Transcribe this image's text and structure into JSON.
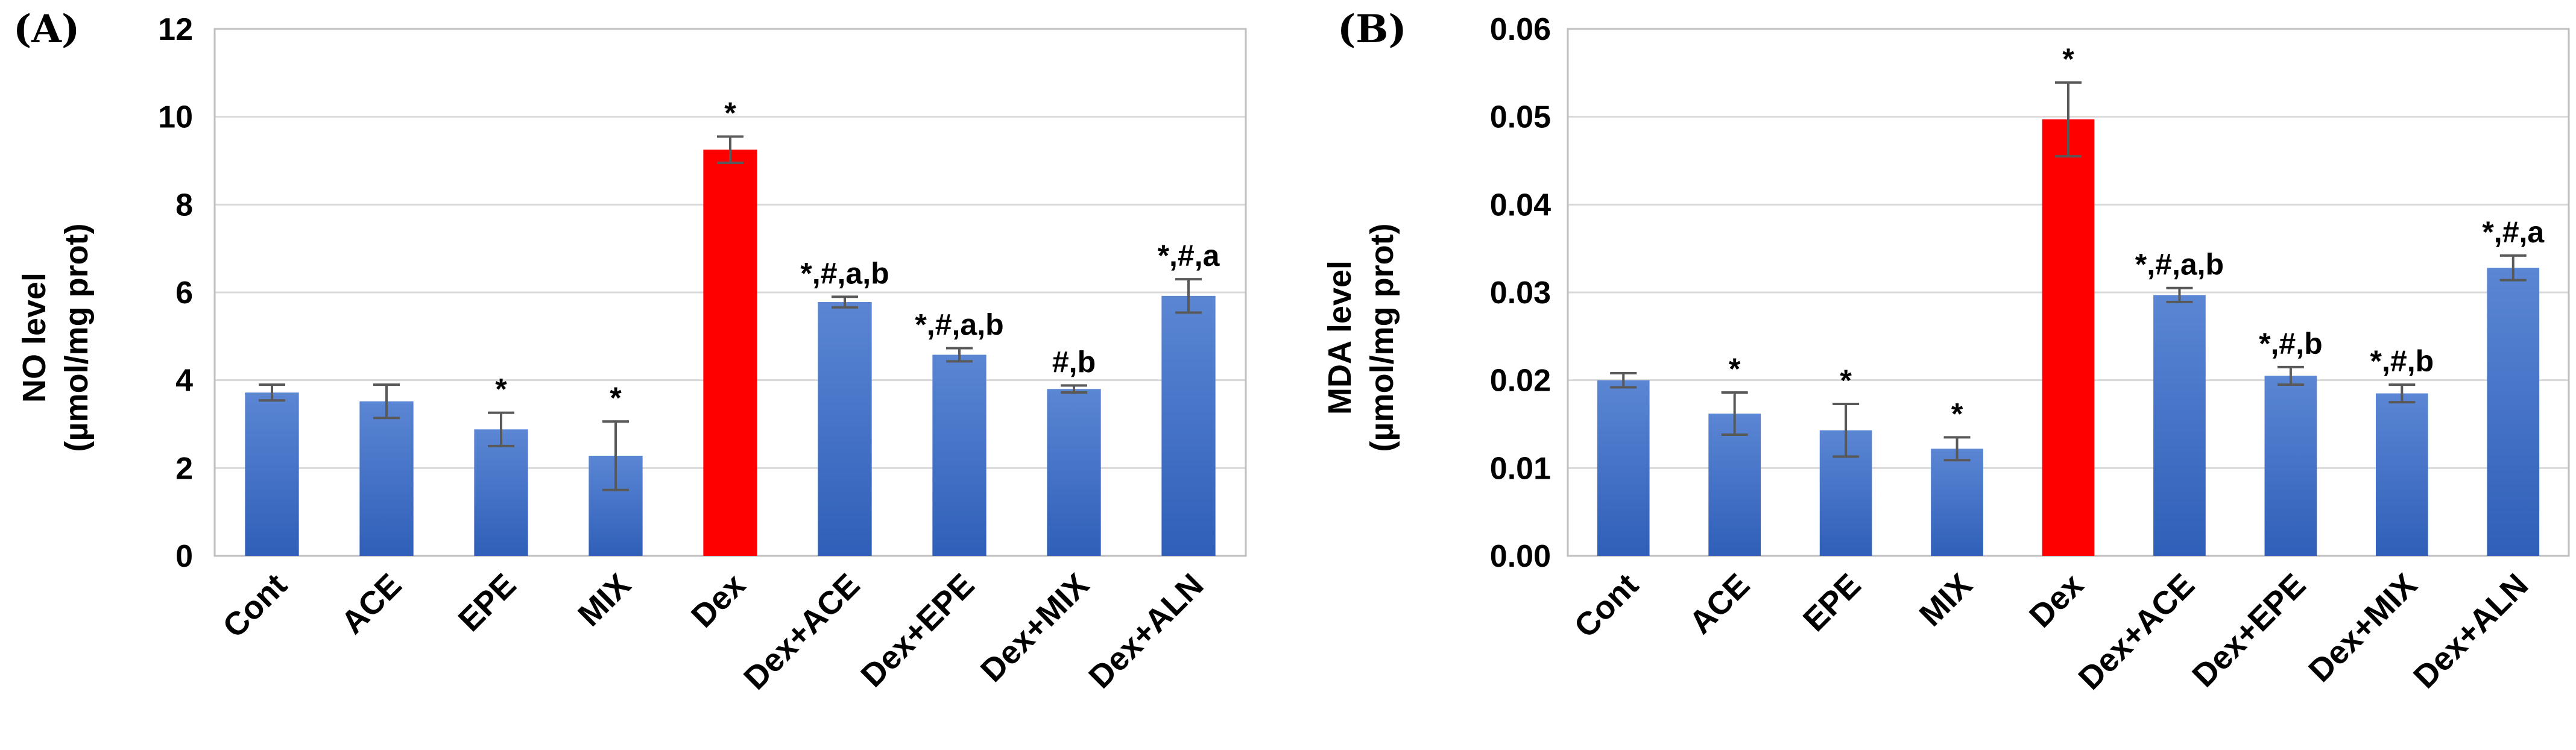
{
  "chart_data": [
    {
      "type": "bar",
      "panel_label": "(A)",
      "ylabel_line1": "NO level",
      "ylabel_line2": "(µmol/mg prot)",
      "ylim": [
        0,
        12
      ],
      "yticks": [
        "0",
        "2",
        "4",
        "6",
        "8",
        "10",
        "12"
      ],
      "categories": [
        "Cont",
        "ACE",
        "EPE",
        "MIX",
        "Dex",
        "Dex+ACE",
        "Dex+EPE",
        "Dex+MIX",
        "Dex+ALN"
      ],
      "values": [
        3.72,
        3.52,
        2.88,
        2.28,
        9.25,
        5.78,
        4.58,
        3.8,
        5.92
      ],
      "errors": [
        0.18,
        0.38,
        0.38,
        0.78,
        0.3,
        0.12,
        0.15,
        0.08,
        0.38
      ],
      "annotations": [
        "",
        "",
        "*",
        "*",
        "*",
        "*,#,a,b",
        "*,#,a,b",
        "#,b",
        "*,#,a"
      ],
      "bar_colors": [
        "#4472c4",
        "#4472c4",
        "#4472c4",
        "#4472c4",
        "#ff0000",
        "#4472c4",
        "#4472c4",
        "#4472c4",
        "#4472c4"
      ]
    },
    {
      "type": "bar",
      "panel_label": "(B)",
      "ylabel_line1": "MDA level",
      "ylabel_line2": "(µmol/mg prot)",
      "ylim": [
        0,
        0.06
      ],
      "yticks": [
        "0.00",
        "0.01",
        "0.02",
        "0.03",
        "0.04",
        "0.05",
        "0.06"
      ],
      "categories": [
        "Cont",
        "ACE",
        "EPE",
        "MIX",
        "Dex",
        "Dex+ACE",
        "Dex+EPE",
        "Dex+MIX",
        "Dex+ALN"
      ],
      "values": [
        0.02,
        0.0162,
        0.0143,
        0.0122,
        0.0497,
        0.0297,
        0.0205,
        0.0185,
        0.0328
      ],
      "errors": [
        0.0008,
        0.0024,
        0.003,
        0.0013,
        0.0042,
        0.0008,
        0.001,
        0.001,
        0.0014
      ],
      "annotations": [
        "",
        "*",
        "*",
        "*",
        "*",
        "*,#,a,b",
        "*,#,b",
        "*,#,b",
        "*,#,a"
      ],
      "bar_colors": [
        "#4472c4",
        "#4472c4",
        "#4472c4",
        "#4472c4",
        "#ff0000",
        "#4472c4",
        "#4472c4",
        "#4472c4",
        "#4472c4"
      ]
    }
  ]
}
